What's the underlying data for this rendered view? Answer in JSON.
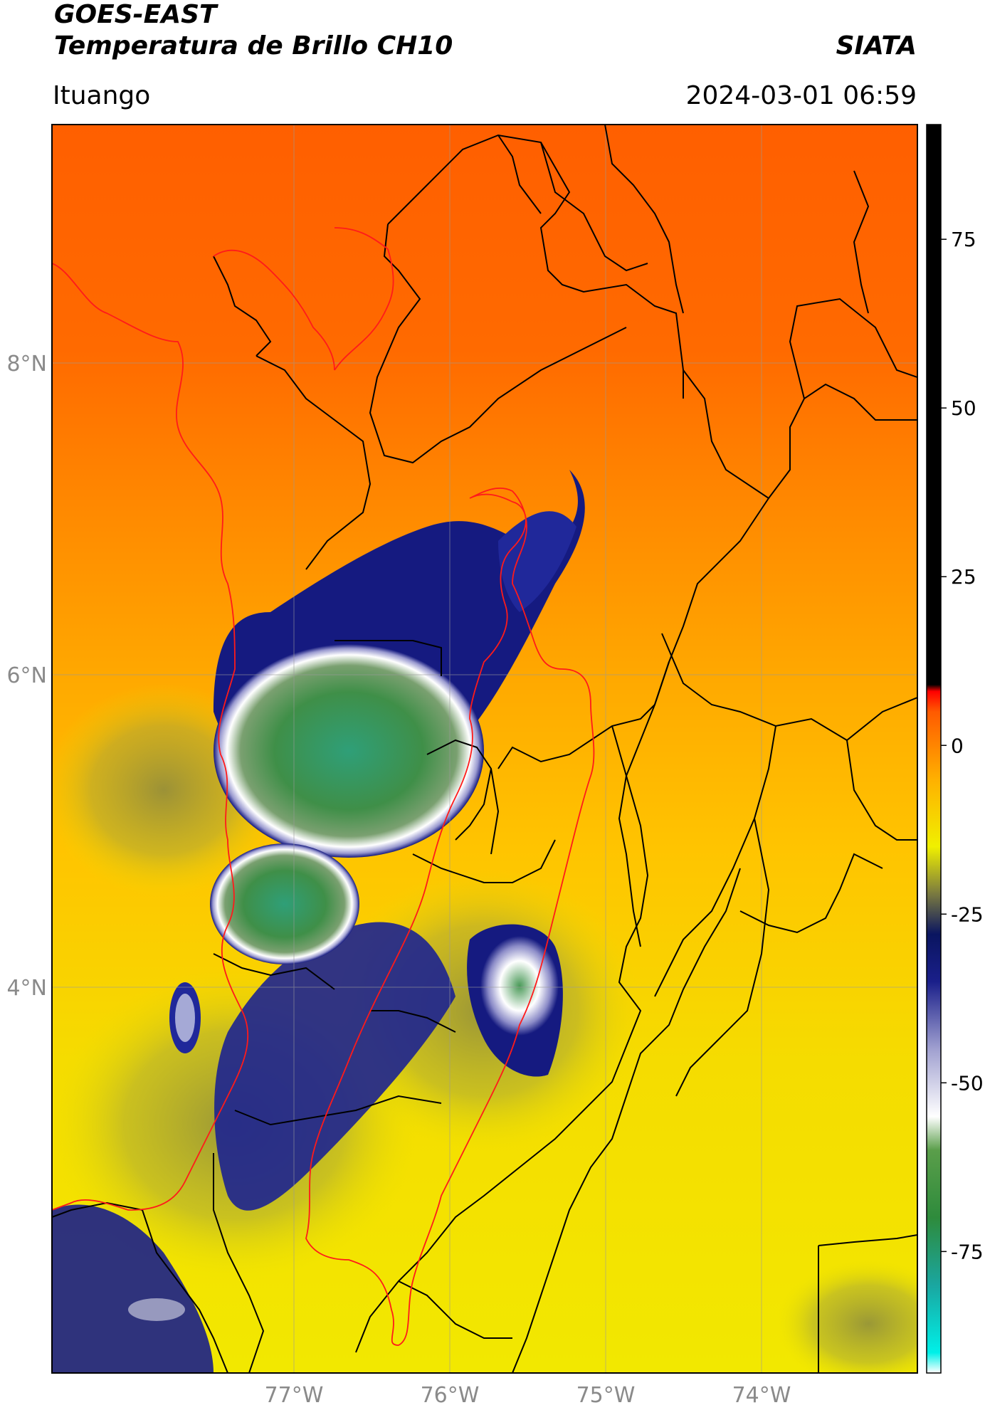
{
  "header": {
    "satellite": "GOES-EAST",
    "product": "Temperatura de Brillo CH10",
    "brand": "SIATA",
    "location": "Ituango",
    "timestamp": "2024-03-01 06:59"
  },
  "map": {
    "lat_ticks": [
      "8°N",
      "6°N",
      "4°N"
    ],
    "lon_ticks": [
      "77°W",
      "76°W",
      "75°W",
      "74°W"
    ],
    "border_colors": {
      "country": "#000000",
      "highlight_region": "#ff0000"
    }
  },
  "colorbar": {
    "ticks": [
      "75",
      "50",
      "25",
      "0",
      "-25",
      "-50",
      "-75"
    ],
    "tick_values": [
      75,
      50,
      25,
      0,
      -25,
      -50,
      -75
    ],
    "range": [
      -93,
      92
    ],
    "stops": [
      {
        "v": -93,
        "c": "#ffffff"
      },
      {
        "v": -90,
        "c": "#00f0e8"
      },
      {
        "v": -80,
        "c": "#1aa6a0"
      },
      {
        "v": -70,
        "c": "#2e8b3c"
      },
      {
        "v": -60,
        "c": "#5a9e4a"
      },
      {
        "v": -55,
        "c": "#ffffff"
      },
      {
        "v": -45,
        "c": "#a0a0d0"
      },
      {
        "v": -35,
        "c": "#1a1f8a"
      },
      {
        "v": -28,
        "c": "#0a1560"
      },
      {
        "v": -22,
        "c": "#7a7a40"
      },
      {
        "v": -15,
        "c": "#f0f000"
      },
      {
        "v": -5,
        "c": "#ffb000"
      },
      {
        "v": 5,
        "c": "#ff5a00"
      },
      {
        "v": 8,
        "c": "#ff0000"
      },
      {
        "v": 9,
        "c": "#000000"
      },
      {
        "v": 92,
        "c": "#000000"
      }
    ]
  },
  "colors": {
    "warm_orange": "#ff6a00",
    "mid_orange": "#ff9a00",
    "yellow": "#f5e400",
    "olive": "#9a9a3a",
    "deep_blue": "#151a80",
    "white": "#f4f4f4",
    "green": "#3c8c48",
    "teal": "#2aa58a"
  }
}
